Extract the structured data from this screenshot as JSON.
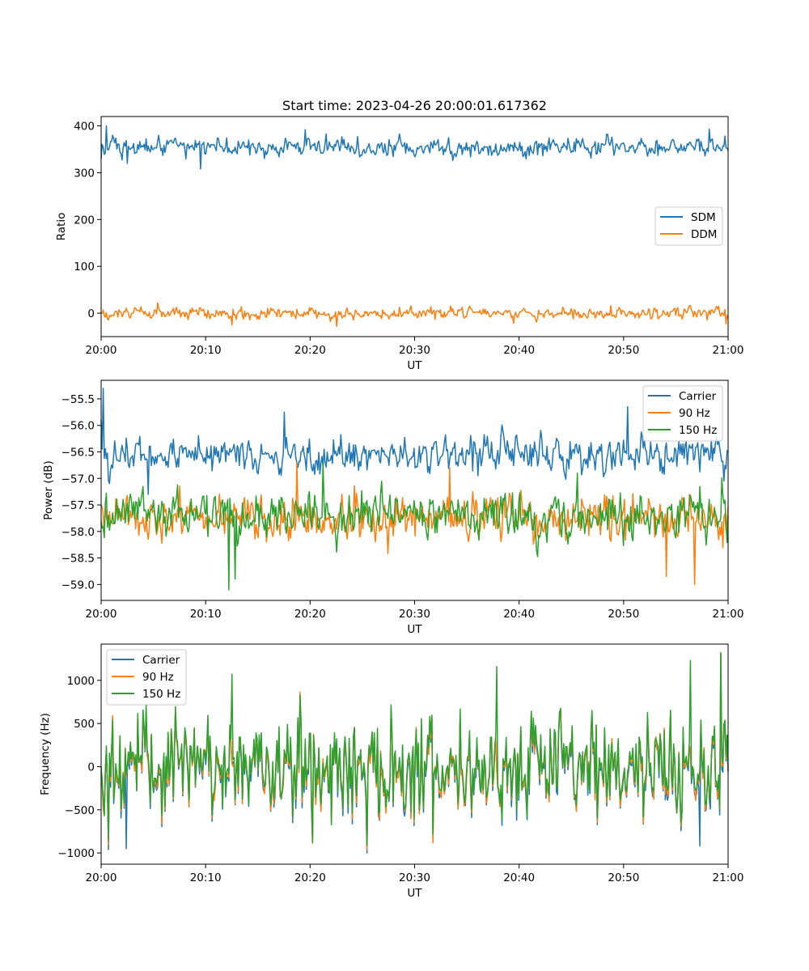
{
  "colors": {
    "blue": "#1f77b4",
    "orange": "#ff7f0e",
    "green": "#2ca02c"
  },
  "chart_data": [
    {
      "type": "line",
      "title": "Start time: 2023-04-26 20:00:01.617362",
      "xlabel": "UT",
      "ylabel": "Ratio",
      "xlim": [
        "20:00",
        "21:00"
      ],
      "x_ticks": [
        "20:00",
        "20:10",
        "20:20",
        "20:30",
        "20:40",
        "20:50",
        "21:00"
      ],
      "ylim": [
        -50,
        420
      ],
      "y_ticks": [
        0,
        100,
        200,
        300,
        400
      ],
      "y_tick_labels": [
        "0",
        "100",
        "200",
        "300",
        "400"
      ],
      "grid": false,
      "legend_position": "center-right",
      "series": [
        {
          "name": "SDM",
          "color": "#1f77b4",
          "mean": 355,
          "noise": 14,
          "first": 330,
          "extremes": [
            [
              0.5,
              400
            ],
            [
              2.5,
              320
            ],
            [
              9.5,
              308
            ],
            [
              19.5,
              392
            ],
            [
              58.2,
              393
            ]
          ]
        },
        {
          "name": "DDM",
          "color": "#ff7f0e",
          "mean": 0,
          "noise": 9,
          "first": 0,
          "extremes": [
            [
              5.4,
              22
            ],
            [
              12.5,
              -25
            ],
            [
              22.5,
              -28
            ],
            [
              59.8,
              -23
            ]
          ]
        }
      ]
    },
    {
      "type": "line",
      "title": "",
      "xlabel": "UT",
      "ylabel": "Power (dB)",
      "xlim": [
        "20:00",
        "21:00"
      ],
      "x_ticks": [
        "20:00",
        "20:10",
        "20:20",
        "20:30",
        "20:40",
        "20:50",
        "21:00"
      ],
      "ylim": [
        -59.3,
        -55.15
      ],
      "y_ticks": [
        -59.0,
        -58.5,
        -58.0,
        -57.5,
        -57.0,
        -56.5,
        -56.0,
        -55.5
      ],
      "y_tick_labels": [
        "−59.0",
        "−58.5",
        "−58.0",
        "−57.5",
        "−57.0",
        "−56.5",
        "−56.0",
        "−55.5"
      ],
      "grid": false,
      "legend_position": "upper-right",
      "series": [
        {
          "name": "Carrier",
          "color": "#1f77b4",
          "mean": -56.55,
          "noise": 0.25,
          "first": -55.9,
          "extremes": [
            [
              0.2,
              -55.3
            ],
            [
              17.5,
              -55.75
            ],
            [
              50.4,
              -55.65
            ],
            [
              4.5,
              -57.3
            ]
          ]
        },
        {
          "name": "90 Hz",
          "color": "#ff7f0e",
          "mean": -57.75,
          "noise": 0.3,
          "first": -57.5,
          "extremes": [
            [
              54.1,
              -58.85
            ],
            [
              56.8,
              -59.0
            ],
            [
              18.7,
              -56.7
            ],
            [
              33.4,
              -56.8
            ]
          ]
        },
        {
          "name": "150 Hz",
          "color": "#2ca02c",
          "mean": -57.7,
          "noise": 0.3,
          "first": -57.8,
          "extremes": [
            [
              12.2,
              -59.1
            ],
            [
              12.8,
              -58.9
            ],
            [
              21.2,
              -56.7
            ],
            [
              45.6,
              -56.9
            ]
          ]
        }
      ]
    },
    {
      "type": "line",
      "title": "",
      "xlabel": "UT",
      "ylabel": "Frequency (Hz)",
      "xlim": [
        "20:00",
        "21:00"
      ],
      "x_ticks": [
        "20:00",
        "20:10",
        "20:20",
        "20:30",
        "20:40",
        "20:50",
        "21:00"
      ],
      "ylim": [
        -1130,
        1420
      ],
      "y_ticks": [
        -1000,
        -500,
        0,
        500,
        1000
      ],
      "y_tick_labels": [
        "−1000",
        "−500",
        "0",
        "500",
        "1000"
      ],
      "grid": false,
      "legend_position": "upper-left",
      "series": [
        {
          "name": "Carrier",
          "color": "#1f77b4",
          "mean": -40,
          "noise": 340,
          "first": -100,
          "extremes": [
            [
              0.7,
              -960
            ],
            [
              2.4,
              -950
            ],
            [
              25.4,
              -1000
            ],
            [
              59.3,
              1300
            ],
            [
              57.3,
              -920
            ]
          ]
        },
        {
          "name": "90 Hz",
          "color": "#ff7f0e",
          "mean": -10,
          "noise": 340,
          "first": -60,
          "extremes": [
            [
              0.7,
              -900
            ],
            [
              25.4,
              -960
            ],
            [
              59.3,
              1300
            ]
          ]
        },
        {
          "name": "150 Hz",
          "color": "#2ca02c",
          "mean": 20,
          "noise": 340,
          "first": 0,
          "extremes": [
            [
              0.7,
              -850
            ],
            [
              12.5,
              1070
            ],
            [
              25.4,
              -910
            ],
            [
              37.9,
              1160
            ],
            [
              56.4,
              1230
            ],
            [
              59.3,
              1320
            ]
          ]
        }
      ]
    }
  ]
}
